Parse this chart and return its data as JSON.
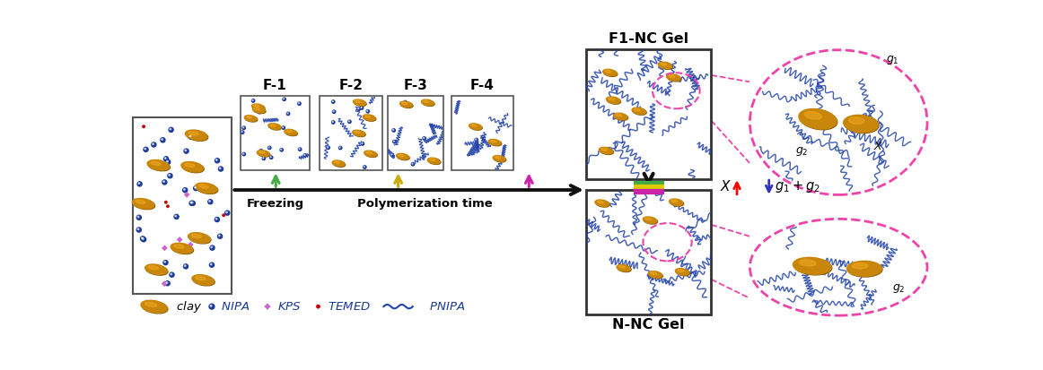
{
  "bg_color": "#ffffff",
  "clay_color": "#C8860A",
  "clay_highlight": "#F0A820",
  "nipa_color": "#1a3a9c",
  "kps_color": "#cc66cc",
  "temed_color": "#cc0000",
  "pnipa_color": "#2244aa",
  "arrow_color": "#111111",
  "green_bar": "#44aa44",
  "yellow_bar": "#ddcc00",
  "magenta_bar": "#cc22aa",
  "dashed_color": "#ee44aa",
  "f1nc_label": "F1-NC Gel",
  "nnc_label": "N-NC Gel",
  "freezing_label": "Freezing",
  "poly_label": "Polymerization time",
  "frame_labels": [
    "F-1",
    "F-2",
    "F-3",
    "F-4"
  ],
  "legend_labels": [
    "clay",
    "NIPA",
    "KPS",
    "TEMED",
    "PNIPA"
  ]
}
